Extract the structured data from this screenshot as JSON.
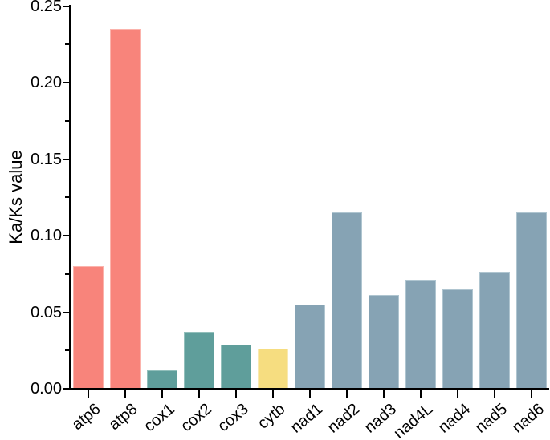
{
  "figure": {
    "background_color": "#ffffff",
    "axis_color": "#000000"
  },
  "chart_data": {
    "type": "bar",
    "title": "",
    "xlabel": "",
    "ylabel": "Ka/Ks value",
    "ylim": [
      0,
      0.25
    ],
    "ytick_labels": [
      "0.00",
      "0.05",
      "0.10",
      "0.15",
      "0.20",
      "0.25"
    ],
    "minor_ytick_values": [
      0.025,
      0.075,
      0.125,
      0.175,
      0.225
    ],
    "grid": false,
    "legend": false,
    "x_label_rotation_deg": -40,
    "categories": [
      "atp6",
      "atp8",
      "cox1",
      "cox2",
      "cox3",
      "cytb",
      "nad1",
      "nad2",
      "nad3",
      "nad4L",
      "nad4",
      "nad5",
      "nad6"
    ],
    "values": [
      0.08,
      0.235,
      0.012,
      0.037,
      0.029,
      0.026,
      0.055,
      0.115,
      0.061,
      0.071,
      0.065,
      0.076,
      0.115
    ],
    "group_palette": {
      "atp_genes": "#F8847B",
      "cox_genes": "#5F9E9B",
      "cytb_gene": "#F6DD80",
      "nad_genes": "#86A3B4"
    },
    "bar_fill_colors": [
      "#F8847B",
      "#F8847B",
      "#5F9E9B",
      "#5F9E9B",
      "#5F9E9B",
      "#F6DD80",
      "#86A3B4",
      "#86A3B4",
      "#86A3B4",
      "#86A3B4",
      "#86A3B4",
      "#86A3B4",
      "#86A3B4"
    ],
    "bar_edge_colors": [
      "#FBB3AC",
      "#FBB3AC",
      "#92BFBB",
      "#92BFBB",
      "#92BFBB",
      "#F9E9AF",
      "#AFC5D0",
      "#AFC5D0",
      "#AFC5D0",
      "#AFC5D0",
      "#AFC5D0",
      "#AFC5D0",
      "#AFC5D0"
    ]
  }
}
